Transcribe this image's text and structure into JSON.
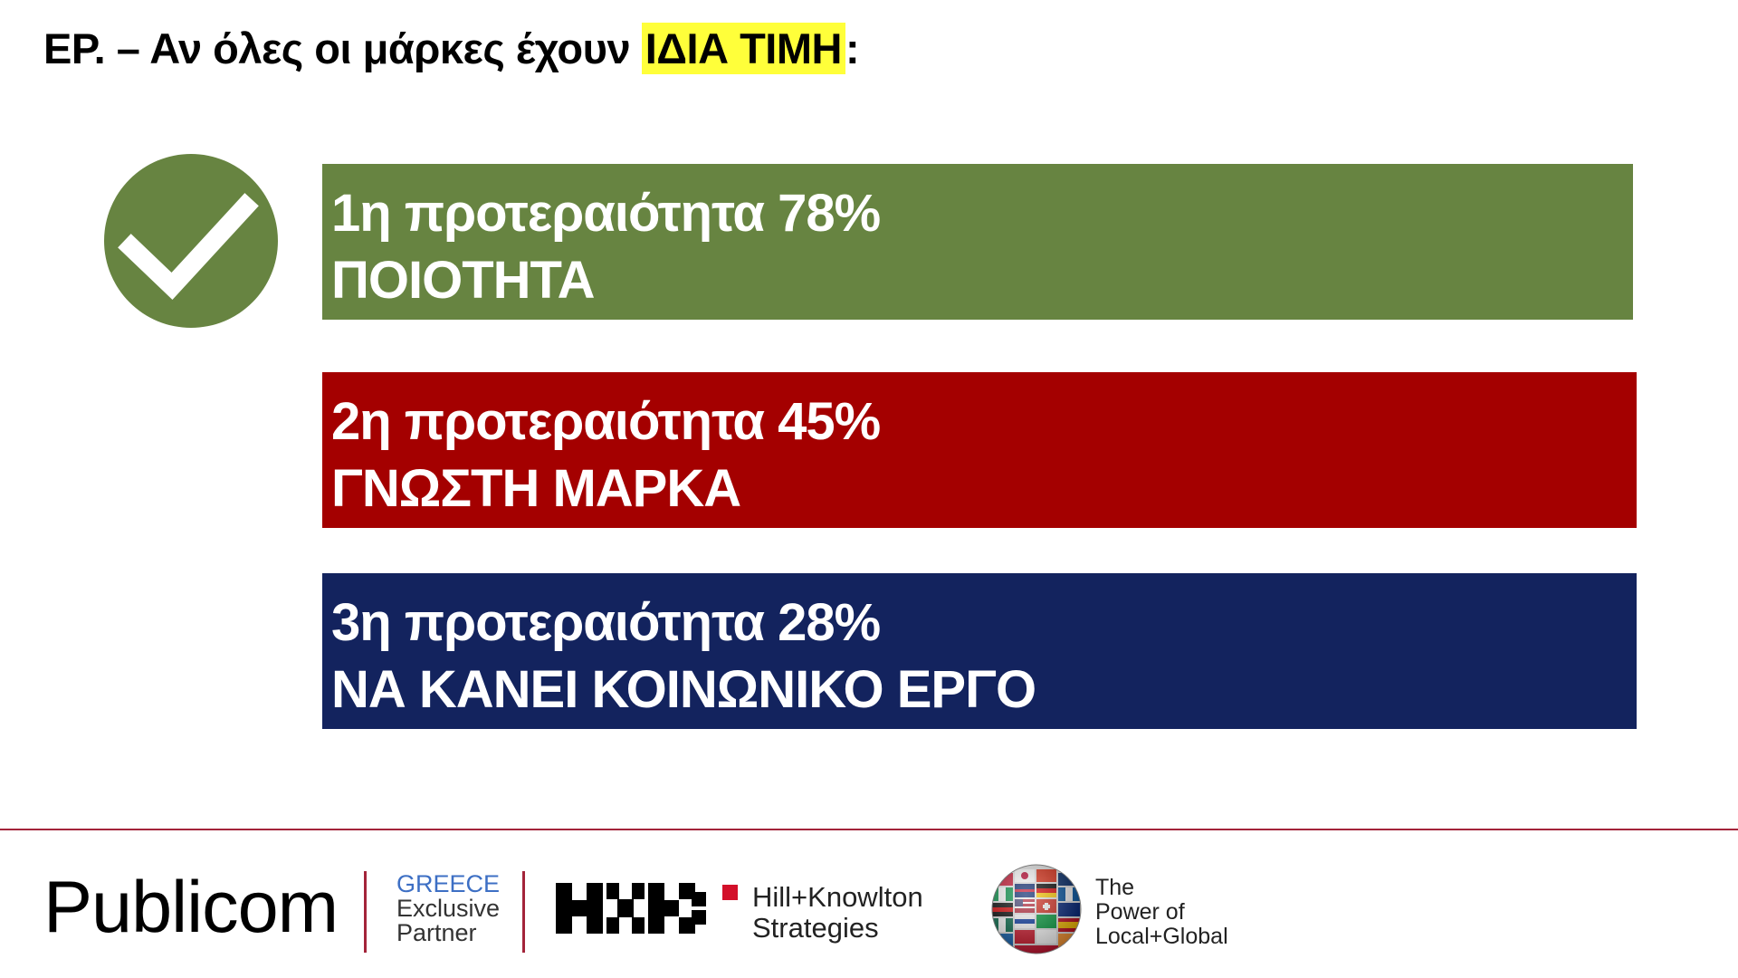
{
  "question": {
    "prefix": "ΕΡ. – Αν όλες οι μάρκες έχουν ",
    "highlight": "ΙΔΙΑ ΤΙΜΗ",
    "suffix": ":"
  },
  "priorities": [
    {
      "line1": "1η προτεραιότητα 78%",
      "line2": "ΠΟΙΟΤΗΤΑ",
      "percent": 78,
      "color": "#678441"
    },
    {
      "line1": "2η προτεραιότητα 45%",
      "line2": "ΓΝΩΣΤΗ ΜΑΡΚΑ",
      "percent": 45,
      "color": "#a40000"
    },
    {
      "line1": "3η προτεραιότητα 28%",
      "line2": "ΝΑ ΚΑΝΕΙ ΚΟΙΝΩΝΙΚΟ ΕΡΓΟ",
      "percent": 28,
      "color": "#13235e"
    }
  ],
  "icons": {
    "check": "checkmark-circle-icon",
    "globe": "flag-globe-icon"
  },
  "footer": {
    "publicom": "Publicom",
    "partner": {
      "line1": "GREECE",
      "line2": "Exclusive",
      "line3": "Partner"
    },
    "hk": {
      "line1": "Hill+Knowlton",
      "line2": "Strategies"
    },
    "power": {
      "line1": "The",
      "line2": "Power of",
      "line3": "Local+Global"
    }
  },
  "colors": {
    "highlight": "#ffff3a",
    "divider": "#a3243a",
    "check": "#678441"
  }
}
